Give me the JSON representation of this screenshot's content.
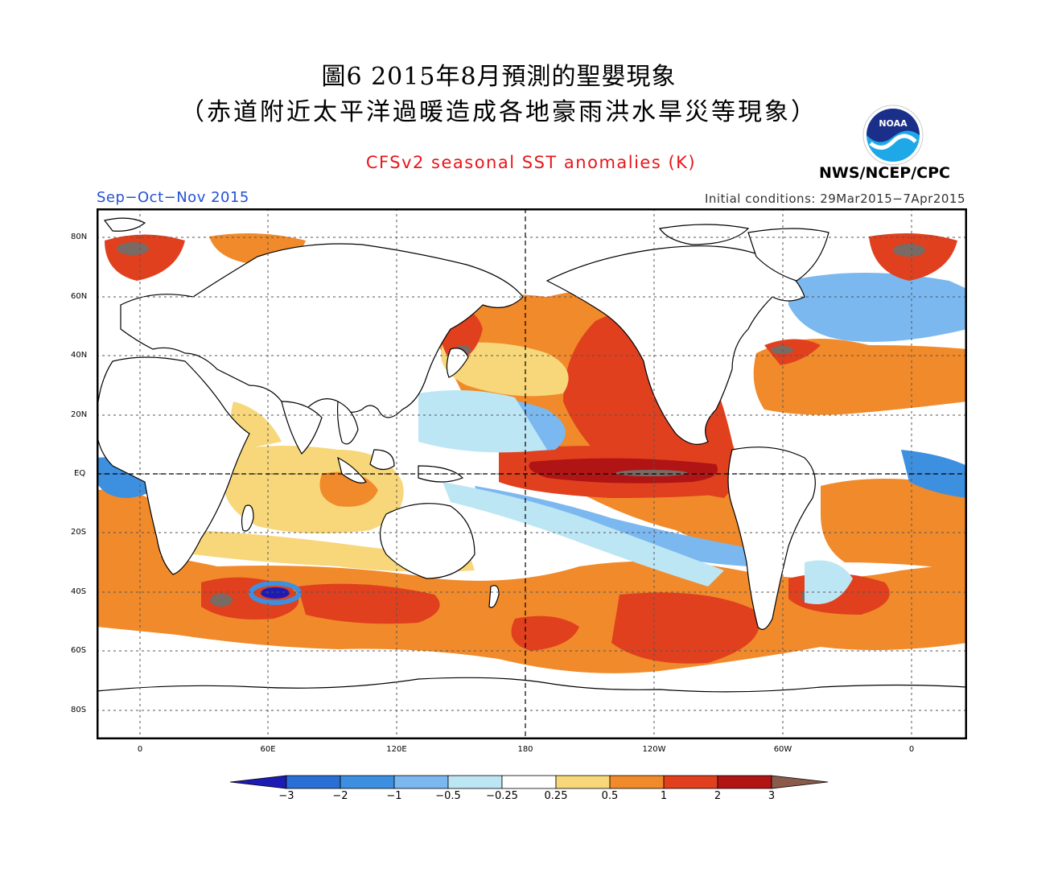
{
  "header": {
    "title_line1": "圖6 2015年8月預測的聖嬰現象",
    "title_line2": "（赤道附近太平洋過暖造成各地豪雨洪水旱災等現象）"
  },
  "figure": {
    "title": "CFSv2 seasonal SST anomalies (K)",
    "agency": "NWS/NCEP/CPC",
    "logo_text": "NOAA",
    "season": "Sep−Oct−Nov 2015",
    "initial_conditions": "Initial conditions: 29Mar2015−7Apr2015"
  },
  "axes": {
    "lat_labels": [
      "80N",
      "60N",
      "40N",
      "20N",
      "EQ",
      "20S",
      "40S",
      "60S",
      "80S"
    ],
    "lon_labels": [
      "0",
      "60E",
      "120E",
      "180",
      "120W",
      "60W",
      "0"
    ]
  },
  "legend": {
    "levels": [
      "−3",
      "−2",
      "−1",
      "−0.5",
      "−0.25",
      "0.25",
      "0.5",
      "1",
      "2",
      "3"
    ],
    "colors": [
      "#1c1cb4",
      "#2a6fd6",
      "#3d8fe0",
      "#7bb8f0",
      "#bde6f5",
      "#ffffff",
      "#f7d77a",
      "#f08a2a",
      "#e0401e",
      "#b01414",
      "#8a5a4a"
    ]
  },
  "colors": {
    "title_red": "#e8161b",
    "season_blue": "#2451d4",
    "land": "#ffffff",
    "warm_core": "#b01414",
    "strong_warm": "#e0401e",
    "moderate_warm": "#f08a2a",
    "weak_warm": "#f7d77a",
    "weak_cool": "#bde6f5",
    "moderate_cool": "#7bb8f0",
    "cool": "#3d8fe0",
    "extreme_warm": "#7a6a64"
  }
}
